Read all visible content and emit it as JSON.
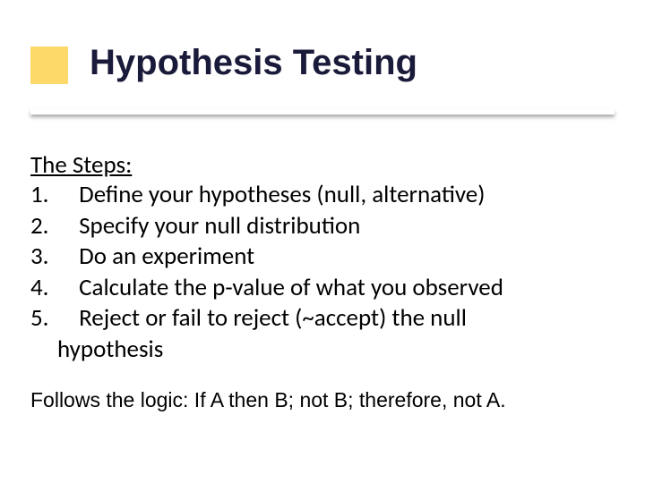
{
  "slide": {
    "title": "Hypothesis Testing",
    "bullet_box_color": "#fcd969",
    "title_color": "#1a1a3a",
    "background_color": "#ffffff",
    "steps_heading": "The Steps:",
    "steps": [
      {
        "num": "1.",
        "text": "Define your hypotheses (null, alternative)"
      },
      {
        "num": "2.",
        "text": "Specify your null distribution"
      },
      {
        "num": "3.",
        "text": "Do an experiment"
      },
      {
        "num": "4.",
        "text": "Calculate the p-value of what you observed"
      },
      {
        "num": "5.",
        "text": "Reject or fail to reject (~accept) the null"
      }
    ],
    "continuation_line": "hypothesis",
    "footer": "Follows the logic: If A then B; not B; therefore, not A.",
    "title_fontsize": 40,
    "body_fontsize": 27,
    "footer_fontsize": 23
  }
}
